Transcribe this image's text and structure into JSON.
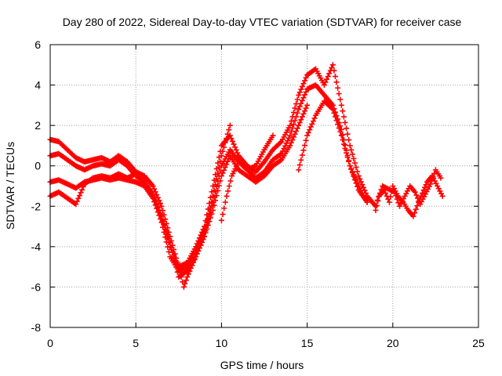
{
  "chart_data": {
    "type": "scatter",
    "title": "Day 280 of 2022, Sidereal Day-to-day VTEC variation (SDTVAR) for receiver case",
    "xlabel": "GPS time / hours",
    "ylabel": "SDTVAR / TECUs",
    "xlim": [
      0,
      25
    ],
    "ylim": [
      -8,
      6
    ],
    "xticks": [
      0,
      5,
      10,
      15,
      20,
      25
    ],
    "yticks": [
      -8,
      -6,
      -4,
      -2,
      0,
      2,
      4,
      6
    ],
    "grid": true,
    "marker": "+",
    "color": "#ff0000",
    "series": [
      {
        "x": [
          0.0,
          0.5,
          1.0,
          1.5,
          2.0,
          2.5,
          3.0,
          3.5,
          4.0,
          4.5,
          5.0,
          5.5,
          6.0,
          6.5,
          7.0,
          7.5,
          7.8,
          8.0,
          8.5,
          9.0,
          9.5,
          10.0,
          10.5
        ],
        "y": [
          1.3,
          1.2,
          0.8,
          0.4,
          0.2,
          0.3,
          0.4,
          0.2,
          0.5,
          0.2,
          -0.3,
          -0.5,
          -1.0,
          -2.0,
          -3.5,
          -5.0,
          -6.0,
          -5.5,
          -4.5,
          -3.5,
          -1.5,
          0.5,
          2.0
        ]
      },
      {
        "x": [
          0.0,
          0.5,
          1.0,
          1.5,
          2.0,
          2.5,
          3.0,
          3.5,
          4.0,
          4.5,
          5.0,
          5.5,
          6.0,
          6.5,
          7.0,
          7.5,
          8.0,
          8.5,
          9.0,
          9.5,
          10.0,
          10.5,
          11.0,
          11.5,
          12.0,
          12.5,
          13.0,
          13.5,
          14.0,
          14.5,
          15.0,
          15.5,
          16.0,
          16.5,
          17.0,
          17.5,
          18.0,
          18.5,
          19.0
        ],
        "y": [
          0.5,
          0.6,
          0.3,
          0.0,
          -0.2,
          0.0,
          0.1,
          0.0,
          0.3,
          0.0,
          -0.5,
          -0.8,
          -1.5,
          -2.5,
          -4.0,
          -5.0,
          -4.8,
          -4.0,
          -3.0,
          -1.0,
          1.0,
          1.5,
          0.5,
          0.0,
          -0.3,
          0.2,
          0.8,
          1.2,
          2.0,
          3.5,
          4.5,
          4.8,
          4.0,
          5.0,
          3.0,
          1.0,
          -0.5,
          -1.5,
          -2.0
        ]
      },
      {
        "x": [
          0.0,
          0.5,
          1.0,
          1.5,
          2.0,
          2.5,
          3.0,
          3.5,
          4.0,
          4.5,
          5.0,
          5.5,
          6.0,
          6.5,
          7.0,
          7.5,
          8.0,
          8.5,
          9.0,
          9.5,
          10.0,
          10.5,
          11.0,
          11.5,
          12.0,
          12.5,
          13.0,
          13.5,
          14.0,
          14.5,
          15.0,
          15.5,
          16.0,
          16.5,
          17.0,
          17.5,
          18.0,
          18.5
        ],
        "y": [
          -0.8,
          -0.7,
          -0.9,
          -1.1,
          -0.8,
          -0.7,
          -0.6,
          -0.7,
          -0.6,
          -0.7,
          -0.8,
          -1.0,
          -1.6,
          -2.8,
          -4.5,
          -5.2,
          -5.0,
          -4.2,
          -3.2,
          -1.8,
          0.0,
          0.8,
          0.2,
          -0.2,
          -0.6,
          -0.3,
          0.3,
          0.6,
          1.5,
          2.8,
          3.8,
          4.0,
          3.5,
          3.0,
          1.8,
          0.0,
          -1.0,
          -1.8
        ]
      },
      {
        "x": [
          0.0,
          0.5,
          1.0,
          1.5,
          2.0,
          2.5,
          3.0,
          3.5,
          4.0,
          4.5,
          5.0,
          5.5,
          6.0,
          6.5,
          7.0,
          7.5,
          8.0,
          8.5,
          9.0,
          9.5,
          10.0,
          10.5,
          11.0,
          11.5,
          12.0,
          12.5,
          13.0,
          13.5,
          14.0,
          14.5,
          15.0
        ],
        "y": [
          -1.5,
          -1.3,
          -1.6,
          -1.9,
          -0.9,
          -0.6,
          -0.5,
          -0.6,
          -0.4,
          -0.6,
          -0.4,
          -0.8,
          -1.4,
          -2.5,
          -3.8,
          -5.5,
          -5.2,
          -4.5,
          -3.5,
          -2.2,
          -0.5,
          0.5,
          -0.2,
          -0.5,
          -0.8,
          -0.5,
          0.0,
          0.3,
          1.0,
          2.0,
          3.0
        ]
      },
      {
        "x": [
          10.0,
          10.3,
          10.6,
          11.0,
          11.5,
          12.0,
          12.5,
          13.0
        ],
        "y": [
          -2.7,
          -1.5,
          -0.5,
          0.2,
          -0.2,
          0.0,
          0.8,
          1.5
        ]
      },
      {
        "x": [
          14.5,
          15.0,
          15.5,
          16.0,
          16.5,
          17.0,
          17.5,
          18.0,
          18.5
        ],
        "y": [
          -0.2,
          1.5,
          2.5,
          3.2,
          2.8,
          1.5,
          0.0,
          -1.2,
          -1.8
        ]
      },
      {
        "x": [
          19.0,
          19.2,
          19.5,
          19.8,
          20.0,
          20.3,
          20.6,
          20.9,
          21.2,
          21.5,
          21.8,
          22.0,
          22.3,
          22.6,
          22.9
        ],
        "y": [
          -2.2,
          -1.5,
          -1.2,
          -1.8,
          -1.0,
          -1.5,
          -1.8,
          -2.2,
          -2.5,
          -1.8,
          -1.2,
          -0.8,
          -0.5,
          -1.0,
          -1.5
        ]
      },
      {
        "x": [
          19.1,
          19.4,
          20.1,
          20.4,
          20.7,
          21.0,
          21.3,
          21.6,
          21.9,
          22.2,
          22.5,
          22.8
        ],
        "y": [
          -1.7,
          -1.0,
          -1.3,
          -2.0,
          -1.5,
          -1.0,
          -1.3,
          -1.9,
          -1.4,
          -0.9,
          -0.2,
          -0.6
        ]
      }
    ]
  }
}
